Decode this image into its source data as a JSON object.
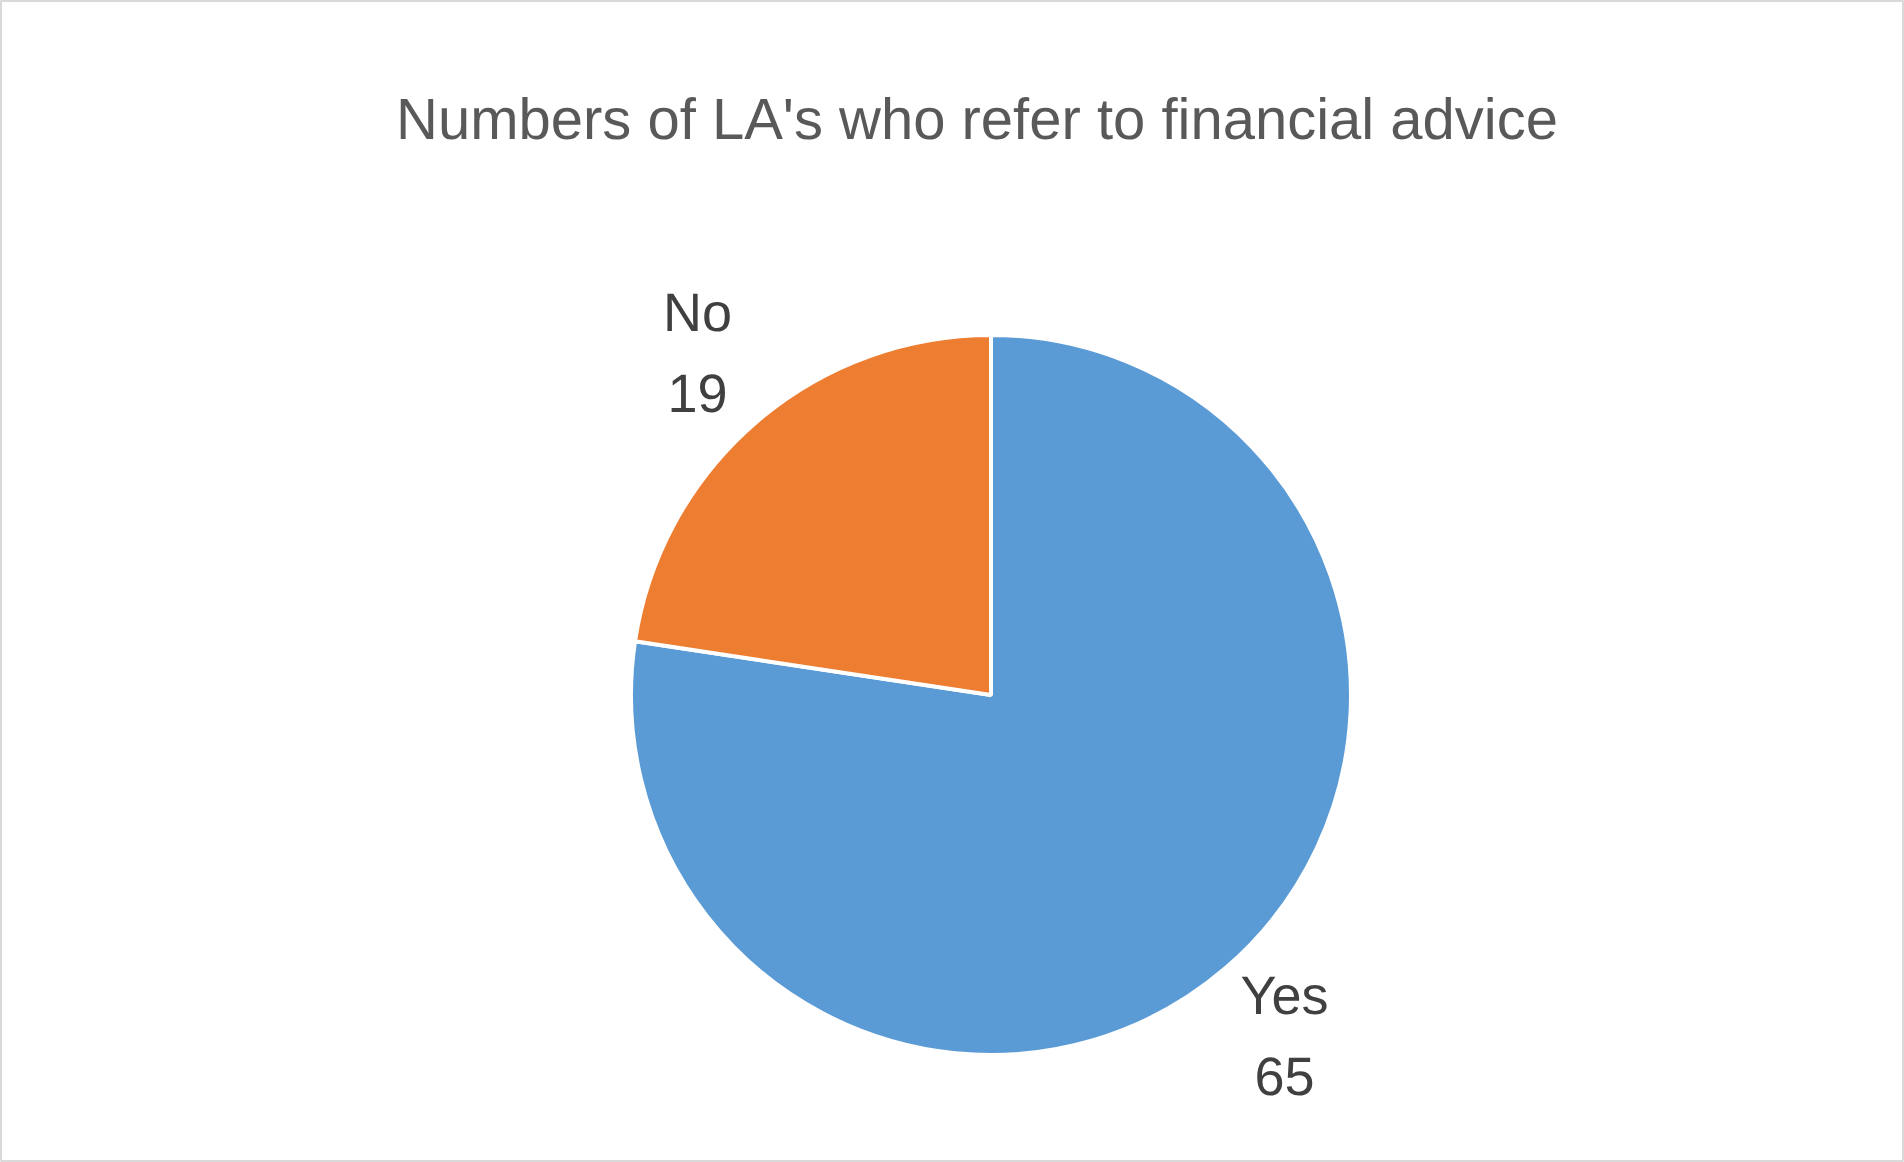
{
  "chart_data": {
    "type": "pie",
    "title": "Numbers of LA's who refer to financial advice",
    "categories": [
      "Yes",
      "No"
    ],
    "values": [
      65,
      19
    ],
    "colors": [
      "#5b9bd5",
      "#ed7d31"
    ],
    "data_labels": true
  }
}
